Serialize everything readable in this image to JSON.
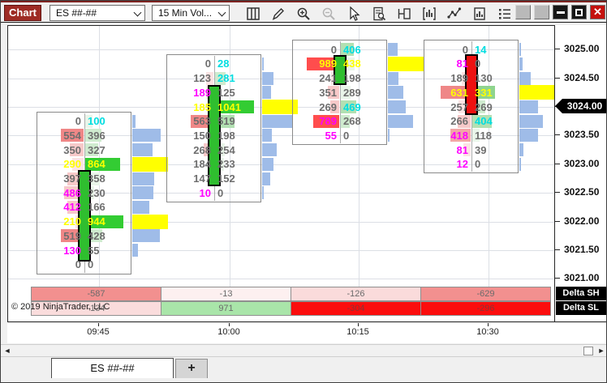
{
  "window": {
    "app_label": "Chart",
    "controls": [
      "extra-1",
      "extra-2",
      "minimize",
      "maximize",
      "close"
    ]
  },
  "toolbar": {
    "instrument_select": "ES ##-##",
    "interval_select": "15 Min Vol...",
    "icons": [
      "data-grid",
      "draw",
      "zoom-in",
      "zoom-out",
      "pointer",
      "chart-trader",
      "panel",
      "bar-type",
      "line-type",
      "report",
      "list"
    ]
  },
  "price_axis": {
    "ticks": [
      "3025.00",
      "3024.50",
      "3024.00",
      "3023.50",
      "3023.00",
      "3022.50",
      "3022.00",
      "3021.50",
      "3021.00"
    ],
    "last_price": "3024.00"
  },
  "time_axis": {
    "labels": [
      "09:45",
      "10:00",
      "10:15",
      "10:30"
    ]
  },
  "copyright": "© 2019 NinjaTrader, LLC",
  "tab_bar": {
    "active_tab": "ES ##-##",
    "add_tab": "+"
  },
  "delta_rows": [
    {
      "name": "Delta SH",
      "cells": [
        {
          "v": "-587",
          "bg": "#F2908F",
          "tc": "#6b6b6b"
        },
        {
          "v": "-13",
          "bg": "#FDF0F0",
          "tc": "#6b6b6b"
        },
        {
          "v": "-126",
          "bg": "#FADBDB",
          "tc": "#6b6b6b"
        },
        {
          "v": "-629",
          "bg": "#F2908F",
          "tc": "#6b6b6b"
        }
      ]
    },
    {
      "name": "Delta SL",
      "cells": [
        {
          "v": "-134",
          "bg": "#FADCDC",
          "tc": "#6b6b6b"
        },
        {
          "v": "971",
          "bg": "#A9E5A9",
          "tc": "#6b6b6b"
        },
        {
          "v": "-304",
          "bg": "#FB0D0D",
          "tc": "#8B3434"
        },
        {
          "v": "-296",
          "bg": "#FB0D0D",
          "tc": "#8B3434"
        }
      ]
    }
  ],
  "chart_data": {
    "type": "footprint",
    "instrument": "ES ##-##",
    "interval": "15 Min Vol",
    "price_step": 0.25,
    "visible_price_range": [
      3021.0,
      3025.0
    ],
    "palette": {
      "text_gray": "#6e6e6e",
      "text_magenta": "#ff00ff",
      "text_yellow": "#ffff00",
      "text_cyan": "#00dde0",
      "bid_bg": [
        "",
        "#FBE3E3",
        "#F7C9C9",
        "#F2A6A6",
        "#EF8787",
        "#FF4D4D"
      ],
      "ask_bg": [
        "",
        "#E9F5E9",
        "#CFEBCF",
        "#B2E0B2",
        "#8FD48F",
        "#33CC33"
      ],
      "histogram": "#9FBCE8",
      "poc": "#FFFF00",
      "candle_up": "#2FBE2F",
      "candle_down": "#EE1111"
    },
    "bars": [
      {
        "time": "09:45",
        "dir": "up",
        "open": 3021.3,
        "close": 3022.9,
        "rows": [
          {
            "p": 3023.75,
            "b": 0,
            "a": 100,
            "bs": "g",
            "as": "c",
            "bl": 0,
            "al": 1
          },
          {
            "p": 3023.5,
            "b": 554,
            "a": 396,
            "bs": "g",
            "as": "g",
            "bl": 4,
            "al": 2
          },
          {
            "p": 3023.25,
            "b": 350,
            "a": 327,
            "bs": "g",
            "as": "g",
            "bl": 2,
            "al": 2
          },
          {
            "p": 3023.0,
            "b": 290,
            "a": 864,
            "bs": "y",
            "as": "y",
            "bl": 1,
            "al": 5
          },
          {
            "p": 3022.75,
            "b": 397,
            "a": 358,
            "bs": "g",
            "as": "g",
            "bl": 2,
            "al": 1
          },
          {
            "p": 3022.5,
            "b": 486,
            "a": 230,
            "bs": "m",
            "as": "g",
            "bl": 2,
            "al": 1
          },
          {
            "p": 3022.25,
            "b": 412,
            "a": 166,
            "bs": "m",
            "as": "g",
            "bl": 2,
            "al": 0
          },
          {
            "p": 3022.0,
            "b": 210,
            "a": 944,
            "bs": "y",
            "as": "y",
            "bl": 1,
            "al": 5
          },
          {
            "p": 3021.75,
            "b": 519,
            "a": 428,
            "bs": "g",
            "as": "g",
            "bl": 4,
            "al": 2
          },
          {
            "p": 3021.5,
            "b": 130,
            "a": 55,
            "bs": "m",
            "as": "g",
            "bl": 0,
            "al": 0
          },
          {
            "p": 3021.25,
            "b": 0,
            "a": 0,
            "bs": "g",
            "as": "g",
            "bl": 0,
            "al": 0
          }
        ]
      },
      {
        "time": "10:00",
        "dir": "up",
        "open": 3022.62,
        "close": 3024.38,
        "rows": [
          {
            "p": 3024.75,
            "b": 0,
            "a": 28,
            "bs": "g",
            "as": "c",
            "bl": 0,
            "al": 0
          },
          {
            "p": 3024.5,
            "b": 123,
            "a": 281,
            "bs": "g",
            "as": "c",
            "bl": 1,
            "al": 2
          },
          {
            "p": 3024.25,
            "b": 189,
            "a": 125,
            "bs": "m",
            "as": "g",
            "bl": 1,
            "al": 0
          },
          {
            "p": 3024.0,
            "b": 185,
            "a": 1041,
            "bs": "y",
            "as": "y",
            "bl": 0,
            "al": 5
          },
          {
            "p": 3023.75,
            "b": 563,
            "a": 519,
            "bs": "g",
            "as": "g",
            "bl": 4,
            "al": 3
          },
          {
            "p": 3023.5,
            "b": 150,
            "a": 198,
            "bs": "g",
            "as": "g",
            "bl": 0,
            "al": 0
          },
          {
            "p": 3023.25,
            "b": 268,
            "a": 254,
            "bs": "g",
            "as": "g",
            "bl": 2,
            "al": 1
          },
          {
            "p": 3023.0,
            "b": 184,
            "a": 233,
            "bs": "g",
            "as": "g",
            "bl": 0,
            "al": 1
          },
          {
            "p": 3022.75,
            "b": 147,
            "a": 152,
            "bs": "g",
            "as": "g",
            "bl": 0,
            "al": 0
          },
          {
            "p": 3022.5,
            "b": 10,
            "a": 0,
            "bs": "m",
            "as": "g",
            "bl": 0,
            "al": 0
          }
        ]
      },
      {
        "time": "10:15",
        "dir": "up",
        "open": 3024.38,
        "close": 3024.9,
        "rows": [
          {
            "p": 3025.0,
            "b": 0,
            "a": 406,
            "bs": "g",
            "as": "c",
            "bl": 0,
            "al": 3
          },
          {
            "p": 3024.75,
            "b": 989,
            "a": 438,
            "bs": "y",
            "as": "y",
            "bl": 5,
            "al": 1
          },
          {
            "p": 3024.5,
            "b": 241,
            "a": 198,
            "bs": "g",
            "as": "g",
            "bl": 1,
            "al": 0
          },
          {
            "p": 3024.25,
            "b": 351,
            "a": 289,
            "bs": "g",
            "as": "g",
            "bl": 2,
            "al": 1
          },
          {
            "p": 3024.0,
            "b": 269,
            "a": 469,
            "bs": "g",
            "as": "c",
            "bl": 2,
            "al": 3
          },
          {
            "p": 3023.75,
            "b": 789,
            "a": 268,
            "bs": "m",
            "as": "g",
            "bl": 5,
            "al": 2
          },
          {
            "p": 3023.5,
            "b": 55,
            "a": 0,
            "bs": "m",
            "as": "g",
            "bl": 0,
            "al": 0
          }
        ]
      },
      {
        "time": "10:30",
        "dir": "down",
        "open": 3024.92,
        "close": 3023.86,
        "rows": [
          {
            "p": 3025.0,
            "b": 0,
            "a": 14,
            "bs": "g",
            "as": "c",
            "bl": 0,
            "al": 0
          },
          {
            "p": 3024.75,
            "b": 81,
            "a": 0,
            "bs": "m",
            "as": "g",
            "bl": 0,
            "al": 0
          },
          {
            "p": 3024.5,
            "b": 189,
            "a": 130,
            "bs": "g",
            "as": "g",
            "bl": 1,
            "al": 0
          },
          {
            "p": 3024.25,
            "b": 631,
            "a": 331,
            "bs": "y",
            "as": "y",
            "bl": 4,
            "al": 4
          },
          {
            "p": 3024.0,
            "b": 257,
            "a": 269,
            "bs": "g",
            "as": "g",
            "bl": 1,
            "al": 2
          },
          {
            "p": 3023.75,
            "b": 266,
            "a": 404,
            "bs": "g",
            "as": "c",
            "bl": 2,
            "al": 3
          },
          {
            "p": 3023.5,
            "b": 418,
            "a": 118,
            "bs": "m",
            "as": "g",
            "bl": 3,
            "al": 1
          },
          {
            "p": 3023.25,
            "b": 81,
            "a": 39,
            "bs": "m",
            "as": "g",
            "bl": 1,
            "al": 0
          },
          {
            "p": 3023.0,
            "b": 12,
            "a": 0,
            "bs": "m",
            "as": "g",
            "bl": 0,
            "al": 0
          }
        ]
      }
    ]
  }
}
